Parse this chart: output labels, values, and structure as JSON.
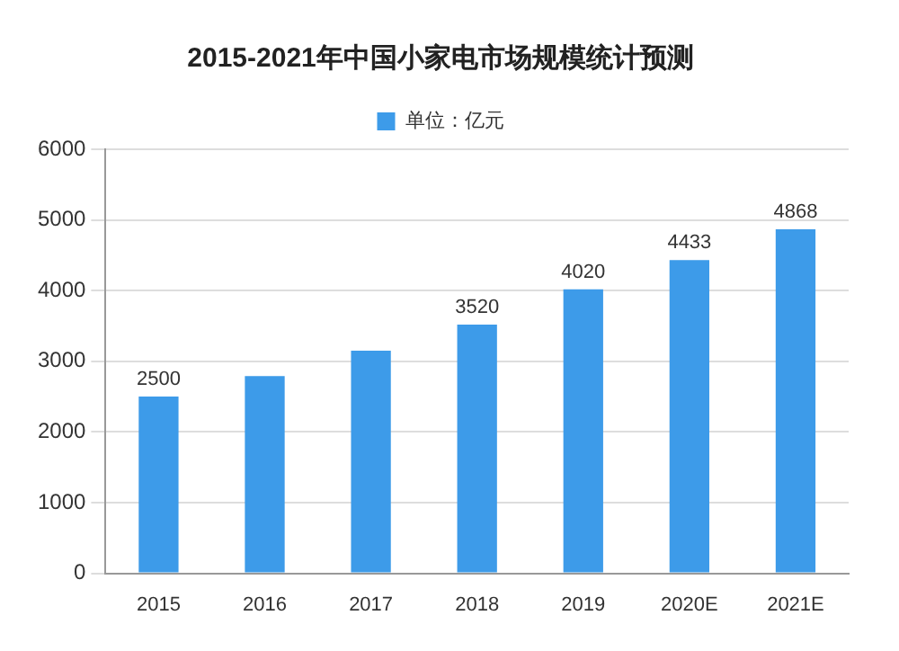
{
  "chart_data": {
    "type": "bar",
    "title": "2015-2021年中国小家电市场规模统计预测",
    "categories": [
      "2015",
      "2016",
      "2017",
      "2018",
      "2019",
      "2020E",
      "2021E"
    ],
    "series": [
      {
        "name": "单位：亿元",
        "color": "#3d9be9",
        "values": [
          2500,
          2790,
          3150,
          3520,
          4020,
          4433,
          4868
        ],
        "value_labels": [
          "2500",
          null,
          null,
          "3520",
          "4020",
          "4433",
          "4868"
        ]
      }
    ],
    "ylim": [
      0,
      6000
    ],
    "yticks": [
      0,
      1000,
      2000,
      3000,
      4000,
      5000,
      6000
    ],
    "grid": "y",
    "legend": "top"
  }
}
